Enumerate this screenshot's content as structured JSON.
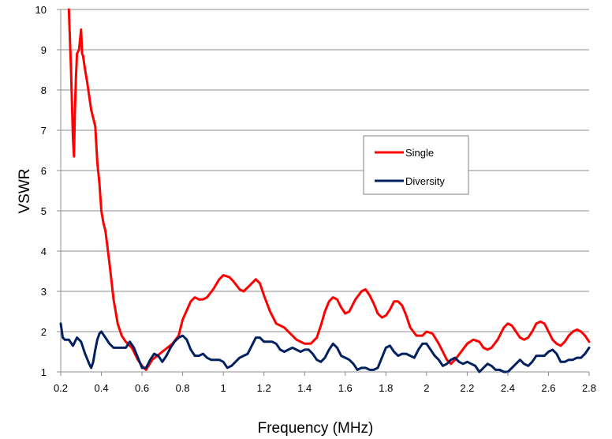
{
  "chart_data": {
    "type": "line",
    "title": "",
    "xlabel": "Frequency (MHz)",
    "ylabel": "VSWR",
    "xlim": [
      0.2,
      2.8
    ],
    "ylim": [
      1,
      10
    ],
    "x_ticks": [
      "0.2",
      "0.4",
      "0.6",
      "0.8",
      "1",
      "1.2",
      "1.4",
      "1.6",
      "1.8",
      "2",
      "2.2",
      "2.4",
      "2.6",
      "2.8"
    ],
    "y_ticks": [
      "1",
      "2",
      "3",
      "4",
      "5",
      "6",
      "7",
      "8",
      "9",
      "10"
    ],
    "grid": "horizontal",
    "legend": "right",
    "series": [
      {
        "name": "Single",
        "color": "#ff0000",
        "points": [
          [
            0.24,
            10.0
          ],
          [
            0.25,
            8.6
          ],
          [
            0.26,
            6.8
          ],
          [
            0.265,
            6.35
          ],
          [
            0.27,
            7.5
          ],
          [
            0.275,
            8.3
          ],
          [
            0.28,
            8.9
          ],
          [
            0.29,
            9.0
          ],
          [
            0.3,
            9.5
          ],
          [
            0.305,
            8.9
          ],
          [
            0.31,
            8.85
          ],
          [
            0.32,
            8.5
          ],
          [
            0.33,
            8.2
          ],
          [
            0.35,
            7.5
          ],
          [
            0.37,
            7.1
          ],
          [
            0.38,
            6.2
          ],
          [
            0.39,
            5.7
          ],
          [
            0.4,
            5.0
          ],
          [
            0.41,
            4.7
          ],
          [
            0.42,
            4.5
          ],
          [
            0.44,
            3.7
          ],
          [
            0.46,
            2.8
          ],
          [
            0.48,
            2.2
          ],
          [
            0.5,
            1.9
          ],
          [
            0.52,
            1.75
          ],
          [
            0.55,
            1.6
          ],
          [
            0.58,
            1.3
          ],
          [
            0.6,
            1.15
          ],
          [
            0.62,
            1.05
          ],
          [
            0.65,
            1.3
          ],
          [
            0.7,
            1.5
          ],
          [
            0.75,
            1.7
          ],
          [
            0.78,
            1.9
          ],
          [
            0.8,
            2.3
          ],
          [
            0.84,
            2.75
          ],
          [
            0.86,
            2.85
          ],
          [
            0.88,
            2.8
          ],
          [
            0.9,
            2.8
          ],
          [
            0.92,
            2.85
          ],
          [
            0.95,
            3.05
          ],
          [
            0.98,
            3.3
          ],
          [
            1.0,
            3.4
          ],
          [
            1.03,
            3.35
          ],
          [
            1.05,
            3.25
          ],
          [
            1.08,
            3.05
          ],
          [
            1.1,
            3.0
          ],
          [
            1.13,
            3.15
          ],
          [
            1.16,
            3.3
          ],
          [
            1.18,
            3.2
          ],
          [
            1.2,
            2.9
          ],
          [
            1.23,
            2.5
          ],
          [
            1.26,
            2.2
          ],
          [
            1.3,
            2.1
          ],
          [
            1.33,
            1.95
          ],
          [
            1.36,
            1.8
          ],
          [
            1.4,
            1.7
          ],
          [
            1.43,
            1.7
          ],
          [
            1.46,
            1.85
          ],
          [
            1.48,
            2.15
          ],
          [
            1.5,
            2.5
          ],
          [
            1.52,
            2.75
          ],
          [
            1.54,
            2.85
          ],
          [
            1.56,
            2.8
          ],
          [
            1.58,
            2.6
          ],
          [
            1.6,
            2.45
          ],
          [
            1.62,
            2.5
          ],
          [
            1.65,
            2.8
          ],
          [
            1.68,
            3.0
          ],
          [
            1.7,
            3.05
          ],
          [
            1.72,
            2.9
          ],
          [
            1.74,
            2.7
          ],
          [
            1.76,
            2.45
          ],
          [
            1.78,
            2.35
          ],
          [
            1.8,
            2.4
          ],
          [
            1.82,
            2.55
          ],
          [
            1.84,
            2.75
          ],
          [
            1.86,
            2.75
          ],
          [
            1.88,
            2.65
          ],
          [
            1.9,
            2.4
          ],
          [
            1.92,
            2.1
          ],
          [
            1.95,
            1.9
          ],
          [
            1.98,
            1.9
          ],
          [
            2.0,
            2.0
          ],
          [
            2.03,
            1.95
          ],
          [
            2.06,
            1.7
          ],
          [
            2.08,
            1.5
          ],
          [
            2.1,
            1.3
          ],
          [
            2.12,
            1.2
          ],
          [
            2.14,
            1.3
          ],
          [
            2.17,
            1.5
          ],
          [
            2.2,
            1.7
          ],
          [
            2.23,
            1.8
          ],
          [
            2.26,
            1.75
          ],
          [
            2.28,
            1.6
          ],
          [
            2.3,
            1.55
          ],
          [
            2.32,
            1.6
          ],
          [
            2.35,
            1.8
          ],
          [
            2.38,
            2.1
          ],
          [
            2.4,
            2.2
          ],
          [
            2.42,
            2.15
          ],
          [
            2.44,
            2.0
          ],
          [
            2.46,
            1.85
          ],
          [
            2.48,
            1.8
          ],
          [
            2.5,
            1.85
          ],
          [
            2.52,
            2.0
          ],
          [
            2.54,
            2.2
          ],
          [
            2.56,
            2.25
          ],
          [
            2.58,
            2.2
          ],
          [
            2.6,
            2.0
          ],
          [
            2.62,
            1.8
          ],
          [
            2.64,
            1.7
          ],
          [
            2.66,
            1.65
          ],
          [
            2.68,
            1.75
          ],
          [
            2.7,
            1.9
          ],
          [
            2.72,
            2.0
          ],
          [
            2.74,
            2.05
          ],
          [
            2.76,
            2.0
          ],
          [
            2.78,
            1.9
          ],
          [
            2.8,
            1.75
          ]
        ]
      },
      {
        "name": "Diversity",
        "color": "#002060",
        "points": [
          [
            0.2,
            2.2
          ],
          [
            0.21,
            1.85
          ],
          [
            0.22,
            1.8
          ],
          [
            0.24,
            1.8
          ],
          [
            0.26,
            1.65
          ],
          [
            0.28,
            1.85
          ],
          [
            0.3,
            1.75
          ],
          [
            0.32,
            1.45
          ],
          [
            0.34,
            1.2
          ],
          [
            0.35,
            1.1
          ],
          [
            0.36,
            1.25
          ],
          [
            0.37,
            1.55
          ],
          [
            0.38,
            1.8
          ],
          [
            0.39,
            1.95
          ],
          [
            0.4,
            2.0
          ],
          [
            0.42,
            1.85
          ],
          [
            0.44,
            1.7
          ],
          [
            0.46,
            1.6
          ],
          [
            0.48,
            1.6
          ],
          [
            0.5,
            1.6
          ],
          [
            0.52,
            1.6
          ],
          [
            0.54,
            1.75
          ],
          [
            0.56,
            1.6
          ],
          [
            0.58,
            1.35
          ],
          [
            0.6,
            1.1
          ],
          [
            0.62,
            1.1
          ],
          [
            0.64,
            1.3
          ],
          [
            0.66,
            1.45
          ],
          [
            0.68,
            1.4
          ],
          [
            0.7,
            1.25
          ],
          [
            0.72,
            1.4
          ],
          [
            0.74,
            1.6
          ],
          [
            0.76,
            1.75
          ],
          [
            0.78,
            1.85
          ],
          [
            0.8,
            1.9
          ],
          [
            0.82,
            1.8
          ],
          [
            0.84,
            1.55
          ],
          [
            0.86,
            1.4
          ],
          [
            0.88,
            1.4
          ],
          [
            0.9,
            1.45
          ],
          [
            0.92,
            1.35
          ],
          [
            0.94,
            1.3
          ],
          [
            0.96,
            1.3
          ],
          [
            0.98,
            1.3
          ],
          [
            1.0,
            1.25
          ],
          [
            1.02,
            1.1
          ],
          [
            1.04,
            1.15
          ],
          [
            1.06,
            1.25
          ],
          [
            1.08,
            1.35
          ],
          [
            1.1,
            1.4
          ],
          [
            1.12,
            1.45
          ],
          [
            1.14,
            1.65
          ],
          [
            1.16,
            1.85
          ],
          [
            1.18,
            1.85
          ],
          [
            1.2,
            1.75
          ],
          [
            1.22,
            1.75
          ],
          [
            1.24,
            1.75
          ],
          [
            1.26,
            1.7
          ],
          [
            1.28,
            1.55
          ],
          [
            1.3,
            1.5
          ],
          [
            1.32,
            1.55
          ],
          [
            1.34,
            1.6
          ],
          [
            1.36,
            1.55
          ],
          [
            1.38,
            1.5
          ],
          [
            1.4,
            1.55
          ],
          [
            1.42,
            1.55
          ],
          [
            1.44,
            1.45
          ],
          [
            1.46,
            1.3
          ],
          [
            1.48,
            1.25
          ],
          [
            1.5,
            1.35
          ],
          [
            1.52,
            1.55
          ],
          [
            1.54,
            1.7
          ],
          [
            1.56,
            1.6
          ],
          [
            1.58,
            1.4
          ],
          [
            1.6,
            1.35
          ],
          [
            1.62,
            1.3
          ],
          [
            1.64,
            1.2
          ],
          [
            1.66,
            1.05
          ],
          [
            1.68,
            1.1
          ],
          [
            1.7,
            1.1
          ],
          [
            1.72,
            1.05
          ],
          [
            1.74,
            1.05
          ],
          [
            1.76,
            1.1
          ],
          [
            1.78,
            1.35
          ],
          [
            1.8,
            1.6
          ],
          [
            1.82,
            1.65
          ],
          [
            1.84,
            1.5
          ],
          [
            1.86,
            1.4
          ],
          [
            1.88,
            1.45
          ],
          [
            1.9,
            1.45
          ],
          [
            1.92,
            1.4
          ],
          [
            1.94,
            1.35
          ],
          [
            1.96,
            1.55
          ],
          [
            1.98,
            1.7
          ],
          [
            2.0,
            1.7
          ],
          [
            2.02,
            1.55
          ],
          [
            2.04,
            1.4
          ],
          [
            2.06,
            1.3
          ],
          [
            2.08,
            1.15
          ],
          [
            2.1,
            1.2
          ],
          [
            2.12,
            1.3
          ],
          [
            2.14,
            1.35
          ],
          [
            2.16,
            1.25
          ],
          [
            2.18,
            1.2
          ],
          [
            2.2,
            1.25
          ],
          [
            2.22,
            1.2
          ],
          [
            2.24,
            1.15
          ],
          [
            2.26,
            1.0
          ],
          [
            2.28,
            1.1
          ],
          [
            2.3,
            1.2
          ],
          [
            2.32,
            1.15
          ],
          [
            2.34,
            1.05
          ],
          [
            2.36,
            1.05
          ],
          [
            2.38,
            1.0
          ],
          [
            2.4,
            1.0
          ],
          [
            2.42,
            1.1
          ],
          [
            2.44,
            1.2
          ],
          [
            2.46,
            1.3
          ],
          [
            2.48,
            1.2
          ],
          [
            2.5,
            1.15
          ],
          [
            2.52,
            1.25
          ],
          [
            2.54,
            1.4
          ],
          [
            2.56,
            1.4
          ],
          [
            2.58,
            1.4
          ],
          [
            2.6,
            1.5
          ],
          [
            2.62,
            1.55
          ],
          [
            2.64,
            1.45
          ],
          [
            2.66,
            1.25
          ],
          [
            2.68,
            1.25
          ],
          [
            2.7,
            1.3
          ],
          [
            2.72,
            1.3
          ],
          [
            2.74,
            1.35
          ],
          [
            2.76,
            1.35
          ],
          [
            2.78,
            1.45
          ],
          [
            2.8,
            1.6
          ]
        ]
      }
    ]
  }
}
